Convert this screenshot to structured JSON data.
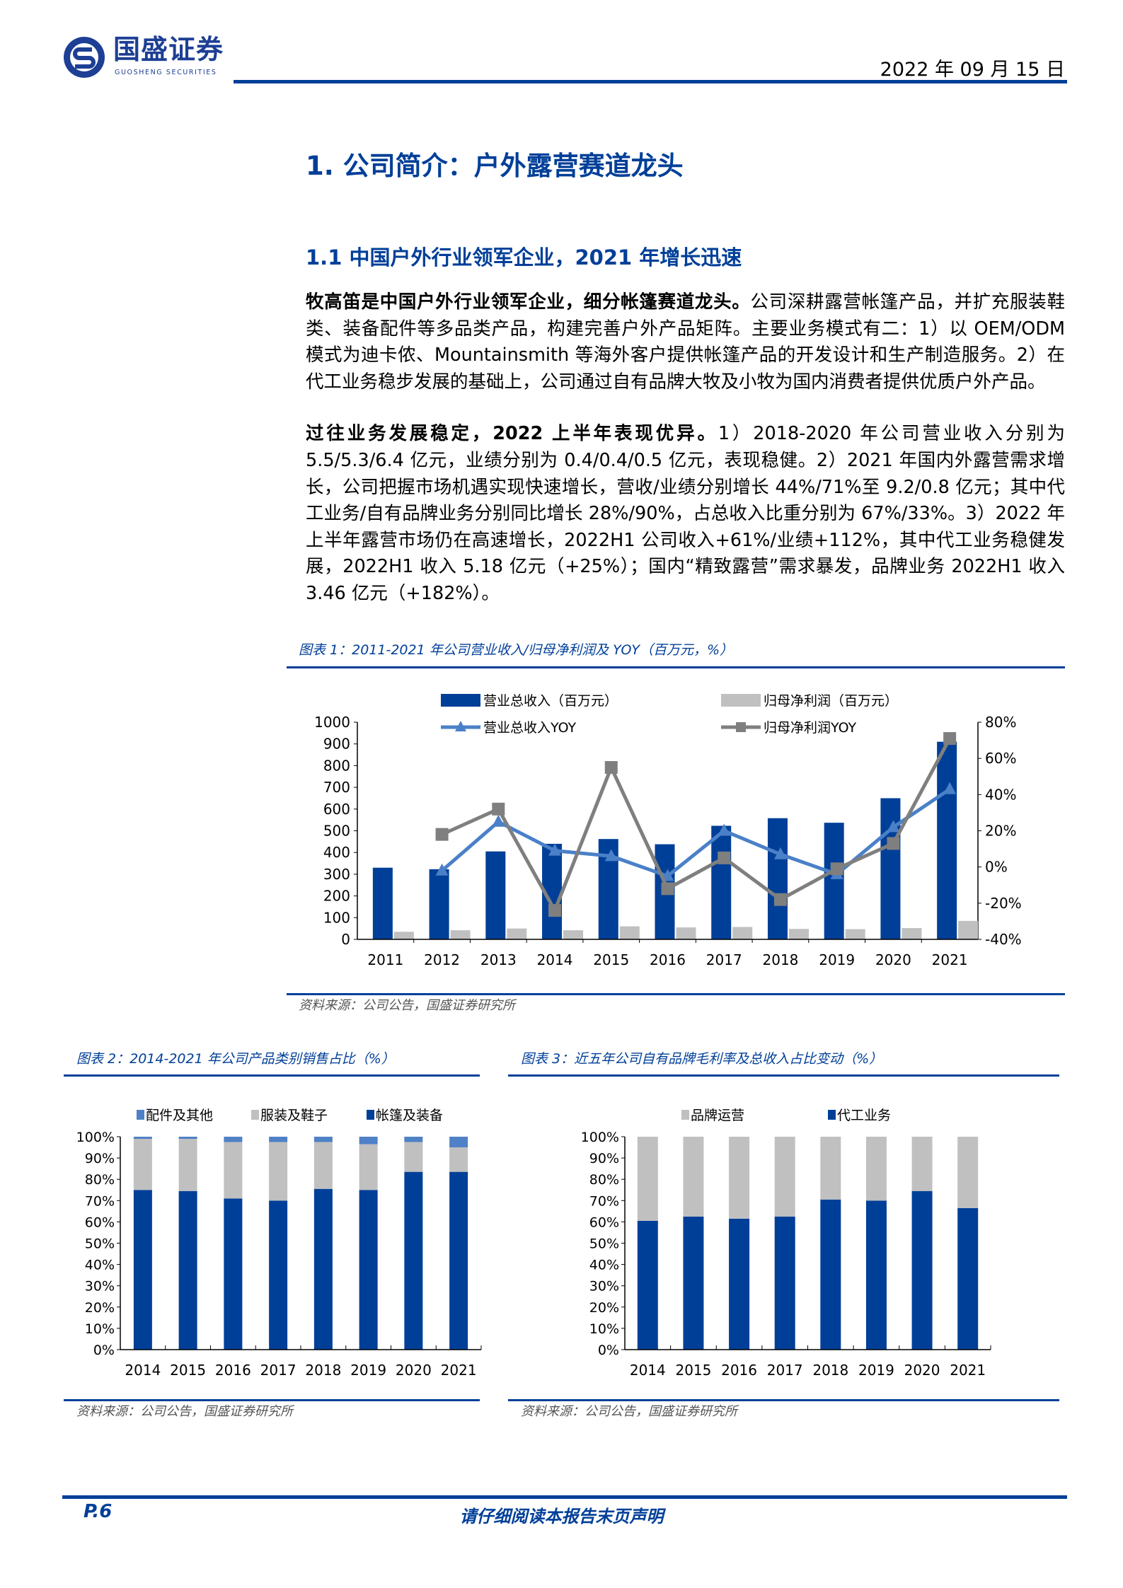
{
  "header": {
    "logo_cn": "国盛证券",
    "logo_en": "GUOSHENG SECURITIES",
    "date": "2022 年 09 月 15 日"
  },
  "section": {
    "h1": "1. 公司简介：户外露营赛道龙头",
    "h2": "1.1 中国户外行业领军企业，2021 年增长迅速"
  },
  "paragraphs": [
    {
      "lead": "牧高笛是中国户外行业领军企业，细分帐篷赛道龙头。",
      "body": "公司深耕露营帐篷产品，并扩充服装鞋类、装备配件等多品类产品，构建完善户外产品矩阵。主要业务模式有二：1）以 OEM/ODM 模式为迪卡侬、Mountainsmith 等海外客户提供帐篷产品的开发设计和生产制造服务。2）在代工业务稳步发展的基础上，公司通过自有品牌大牧及小牧为国内消费者提供优质户外产品。"
    },
    {
      "lead": "过往业务发展稳定，2022 上半年表现优异。",
      "body": "1）2018-2020 年公司营业收入分别为 5.5/5.3/6.4 亿元，业绩分别为 0.4/0.4/0.5 亿元，表现稳健。2）2021 年国内外露营需求增长，公司把握市场机遇实现快速增长，营收/业绩分别增长 44%/71%至 9.2/0.8 亿元；其中代工业务/自有品牌业务分别同比增长 28%/90%，占总收入比重分别为 67%/33%。3）2022 年上半年露营市场仍在高速增长，2022H1 公司收入+61%/业绩+112%，其中代工业务稳健发展，2022H1 收入 5.18 亿元（+25%）；国内“精致露营”需求暴发，品牌业务 2022H1 收入 3.46 亿元（+182%）。"
    }
  ],
  "figures": {
    "fig1_caption": "图表 1：2011-2021 年公司营业收入/归母净利润及 YOY（百万元，%）",
    "fig1_source": "资料来源：公司公告，国盛证券研究所",
    "fig2_caption": "图表 2：2014-2021 年公司产品类别销售占比（%）",
    "fig2_source": "资料来源：公司公告，国盛证券研究所",
    "fig3_caption": "图表 3：近五年公司自有品牌毛利率及总收入占比变动（%）",
    "fig3_source": "资料来源：公司公告，国盛证券研究所"
  },
  "chart_data": [
    {
      "type": "bar",
      "title": "2011-2021 年公司营业收入/归母净利润及 YOY（百万元，%）",
      "categories": [
        "2011",
        "2012",
        "2013",
        "2014",
        "2015",
        "2016",
        "2017",
        "2018",
        "2019",
        "2020",
        "2021"
      ],
      "ylim": [
        0,
        1000
      ],
      "yticks": [
        0,
        100,
        200,
        300,
        400,
        500,
        600,
        700,
        800,
        900,
        1000
      ],
      "y2lim": [
        -40,
        80
      ],
      "y2ticks": [
        -40,
        -20,
        0,
        20,
        40,
        60,
        80
      ],
      "y2tick_labels": [
        "-40%",
        "-20%",
        "0%",
        "20%",
        "40%",
        "60%",
        "80%"
      ],
      "legend_position": "top",
      "series": [
        {
          "name": "营业总收入（百万元）",
          "kind": "bar",
          "axis": "left",
          "color": "#003f98",
          "values": [
            330,
            323,
            405,
            440,
            462,
            438,
            523,
            558,
            537,
            650,
            910
          ]
        },
        {
          "name": "归母净利润（百万元）",
          "kind": "bar",
          "axis": "left",
          "color": "#c0c0c0",
          "values": [
            35,
            42,
            50,
            42,
            60,
            55,
            57,
            48,
            47,
            52,
            85
          ]
        },
        {
          "name": "营业总收入YOY",
          "kind": "line",
          "axis": "right",
          "color": "#4a80c8",
          "marker": "triangle",
          "values": [
            null,
            -2,
            25,
            9,
            6,
            -5,
            20,
            7,
            -4,
            22,
            43
          ]
        },
        {
          "name": "归母净利润YOY",
          "kind": "line",
          "axis": "right",
          "color": "#7f7f7f",
          "marker": "square",
          "values": [
            null,
            18,
            32,
            -24,
            55,
            -12,
            5,
            -18,
            -1,
            13,
            71
          ]
        }
      ]
    },
    {
      "type": "bar",
      "stacked": true,
      "title": "2014-2021 年公司产品类别销售占比（%）",
      "categories": [
        "2014",
        "2015",
        "2016",
        "2017",
        "2018",
        "2019",
        "2020",
        "2021"
      ],
      "ylim": [
        0,
        100
      ],
      "yticks": [
        0,
        10,
        20,
        30,
        40,
        50,
        60,
        70,
        80,
        90,
        100
      ],
      "legend_position": "top",
      "series": [
        {
          "name": "帐篷及装备",
          "color": "#003f98",
          "values": [
            75,
            74.5,
            71,
            70,
            75.5,
            75,
            83.5,
            83.5
          ]
        },
        {
          "name": "服装及鞋子",
          "color": "#c0c0c0",
          "values": [
            24,
            24.5,
            26.5,
            27.5,
            22,
            21.5,
            14,
            11.5
          ]
        },
        {
          "name": "配件及其他",
          "color": "#4f81c6",
          "values": [
            1,
            1,
            2.5,
            2.5,
            2.5,
            3.5,
            2.5,
            5
          ]
        }
      ],
      "legend_order": [
        "配件及其他",
        "服装及鞋子",
        "帐篷及装备"
      ]
    },
    {
      "type": "bar",
      "stacked": true,
      "title": "近五年公司自有品牌毛利率及总收入占比变动（%）",
      "categories": [
        "2014",
        "2015",
        "2016",
        "2017",
        "2018",
        "2019",
        "2020",
        "2021"
      ],
      "ylim": [
        0,
        100
      ],
      "yticks": [
        0,
        10,
        20,
        30,
        40,
        50,
        60,
        70,
        80,
        90,
        100
      ],
      "legend_position": "top",
      "series": [
        {
          "name": "代工业务",
          "color": "#003f98",
          "values": [
            60.5,
            62.5,
            61.5,
            62.5,
            70.5,
            70,
            74.5,
            66.5
          ]
        },
        {
          "name": "品牌运营",
          "color": "#c0c0c0",
          "values": [
            39.5,
            37.5,
            38.5,
            37.5,
            29.5,
            30,
            25.5,
            33.5
          ]
        }
      ],
      "legend_order": [
        "品牌运营",
        "代工业务"
      ]
    }
  ],
  "footer": {
    "page": "P.6",
    "disclaimer": "请仔细阅读本报告末页声明"
  }
}
